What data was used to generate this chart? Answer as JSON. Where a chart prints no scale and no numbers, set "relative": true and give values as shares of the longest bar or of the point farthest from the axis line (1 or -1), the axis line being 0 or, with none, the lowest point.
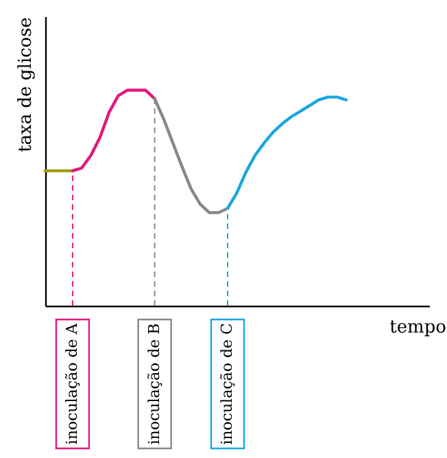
{
  "chart_data": {
    "type": "line",
    "relative": true,
    "xlabel": "tempo",
    "ylabel": "taxa de glicose",
    "grid": false,
    "tick_labels": false,
    "line_style": "solid",
    "categories": [
      null,
      null,
      null,
      null,
      null,
      null,
      null,
      null,
      null,
      null,
      null,
      null,
      null,
      null,
      null,
      null,
      null,
      null,
      null,
      null,
      null,
      null,
      null,
      null,
      null,
      null,
      null,
      null,
      null,
      null,
      null,
      null,
      null,
      null
    ],
    "series": [
      {
        "color": "#a39b0f",
        "values": [
          0.626,
          0.626,
          0.626,
          0.626,
          null,
          null,
          null,
          null,
          null,
          null,
          null,
          null,
          null,
          null,
          null,
          null,
          null,
          null,
          null,
          null,
          null,
          null,
          null,
          null,
          null,
          null,
          null,
          null,
          null,
          null,
          null,
          null,
          null,
          null
        ]
      },
      {
        "color": "#e0197d",
        "values": [
          null,
          null,
          null,
          0.626,
          0.639,
          0.697,
          0.781,
          0.897,
          0.974,
          1.0,
          1.0,
          1.0,
          0.961,
          null,
          null,
          null,
          null,
          null,
          null,
          null,
          null,
          null,
          null,
          null,
          null,
          null,
          null,
          null,
          null,
          null,
          null,
          null,
          null,
          null
        ]
      },
      {
        "color": "#888888",
        "values": [
          null,
          null,
          null,
          null,
          null,
          null,
          null,
          null,
          null,
          null,
          null,
          null,
          0.961,
          0.865,
          0.755,
          0.645,
          0.542,
          0.471,
          0.432,
          0.432,
          0.452,
          null,
          null,
          null,
          null,
          null,
          null,
          null,
          null,
          null,
          null,
          null,
          null,
          null
        ]
      },
      {
        "color": "#1aa6e0",
        "values": [
          null,
          null,
          null,
          null,
          null,
          null,
          null,
          null,
          null,
          null,
          null,
          null,
          null,
          null,
          null,
          null,
          null,
          null,
          null,
          null,
          0.452,
          0.523,
          0.619,
          0.697,
          0.755,
          0.806,
          0.845,
          0.877,
          0.903,
          0.929,
          0.955,
          0.968,
          0.968,
          0.955
        ]
      }
    ],
    "annotations": [
      "inoculação de A",
      "inoculação de B",
      "inoculação de C"
    ]
  }
}
